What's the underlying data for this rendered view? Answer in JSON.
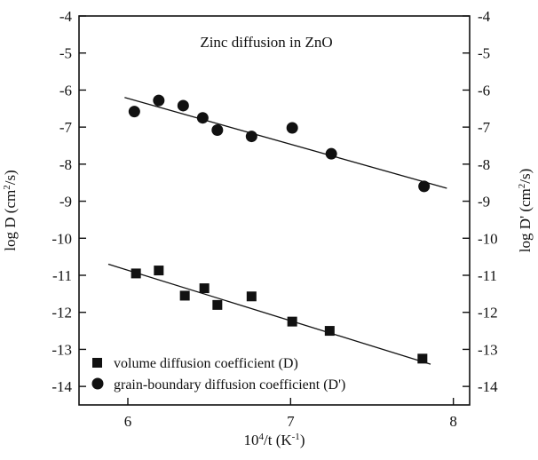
{
  "chart_data": {
    "type": "scatter",
    "title": "Zinc diffusion in ZnO",
    "xlabel": {
      "base": "10",
      "sup": "4",
      "rest": "/t (K",
      "sup2": "-1",
      "close": ")"
    },
    "ylabel_left": {
      "pre": "log D (cm",
      "sup": "2",
      "post": "/s)"
    },
    "ylabel_right": {
      "pre": "log D' (cm",
      "sup": "2",
      "post": "/s)"
    },
    "xlim": [
      5.7,
      8.1
    ],
    "ylim": [
      -14.5,
      -4
    ],
    "x_ticks": [
      6,
      7,
      8
    ],
    "x_tick_labels": [
      "6",
      "7",
      "8"
    ],
    "y_ticks": [
      -4,
      -5,
      -6,
      -7,
      -8,
      -9,
      -10,
      -11,
      -12,
      -13,
      -14
    ],
    "y_tick_labels": [
      "-4",
      "-5",
      "-6",
      "-7",
      "-8",
      "-9",
      "-10",
      "-11",
      "-12",
      "-13",
      "-14"
    ],
    "legend_position": "bottom-left",
    "series": [
      {
        "name": "volume diffusion coefficient (D)",
        "marker": "square",
        "color": "#111111",
        "x": [
          6.05,
          6.19,
          6.35,
          6.47,
          6.55,
          6.76,
          7.01,
          7.24,
          7.81
        ],
        "y": [
          -10.95,
          -10.87,
          -11.55,
          -11.35,
          -11.8,
          -11.57,
          -12.25,
          -12.5,
          -13.25
        ],
        "fit_line": {
          "x": [
            5.88,
            7.86
          ],
          "y": [
            -10.7,
            -13.4
          ]
        }
      },
      {
        "name": "grain-boundary diffusion coefficient (D')",
        "marker": "circle",
        "color": "#111111",
        "x": [
          6.04,
          6.19,
          6.34,
          6.46,
          6.55,
          6.76,
          7.01,
          7.25,
          7.82
        ],
        "y": [
          -6.58,
          -6.28,
          -6.42,
          -6.75,
          -7.08,
          -7.25,
          -7.02,
          -7.72,
          -8.6
        ],
        "fit_line": {
          "x": [
            5.98,
            7.96
          ],
          "y": [
            -6.2,
            -8.65
          ]
        }
      }
    ]
  }
}
